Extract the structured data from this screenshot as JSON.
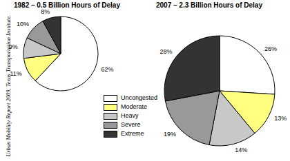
{
  "chart_data": [
    {
      "type": "pie",
      "title": "1982 – 0.5 Billion Hours of Delay",
      "annotation": "Urban Mobility Report 2009, Texas Transportation Institute.",
      "categories": [
        "Uncongested",
        "Moderate",
        "Heavy",
        "Severe",
        "Extreme"
      ],
      "values": [
        62,
        11,
        9,
        10,
        8
      ],
      "value_labels": [
        "62%",
        "11%",
        "9%",
        "10%",
        "8%"
      ],
      "colors": [
        "#ffffff",
        "#ffff80",
        "#c8c8c8",
        "#999999",
        "#333333"
      ],
      "data_labels": true,
      "legend": "center"
    },
    {
      "type": "pie",
      "title": "2007 – 2.3 Billion Hours of Delay",
      "categories": [
        "Uncongested",
        "Moderate",
        "Heavy",
        "Severe",
        "Extreme"
      ],
      "values": [
        26,
        13,
        14,
        19,
        28
      ],
      "value_labels": [
        "26%",
        "13%",
        "14%",
        "19%",
        "28%"
      ],
      "colors": [
        "#ffffff",
        "#ffff80",
        "#c8c8c8",
        "#999999",
        "#333333"
      ],
      "data_labels": true
    }
  ]
}
